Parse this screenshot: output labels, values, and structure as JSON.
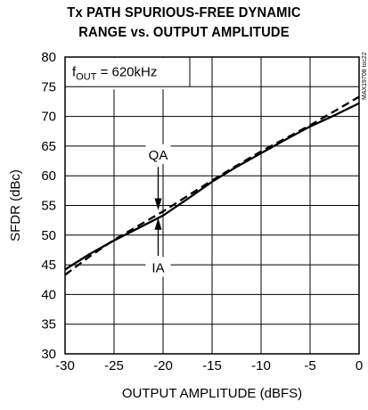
{
  "chart_data": {
    "type": "line",
    "title_lines": [
      "Tx PATH SPURIOUS-FREE DYNAMIC",
      "RANGE vs. OUTPUT AMPLITUDE"
    ],
    "xlabel": "OUTPUT AMPLITUDE (dBFS)",
    "ylabel": "SFDR (dBc)",
    "xlim": [
      -30,
      0
    ],
    "ylim": [
      30,
      80
    ],
    "xticks": [
      -30,
      -25,
      -20,
      -15,
      -10,
      -5,
      0
    ],
    "yticks": [
      30,
      35,
      40,
      45,
      50,
      55,
      60,
      65,
      70,
      75,
      80
    ],
    "grid": true,
    "annotation_box": {
      "prefix": "f",
      "subscript": "OUT",
      "value": " = 620kHz"
    },
    "watermark": "MAX19708 toc22",
    "series": [
      {
        "name": "QA",
        "style": "dashed",
        "x": [
          -30,
          -27.5,
          -25,
          -22.5,
          -20,
          -17.5,
          -15,
          -12.5,
          -10,
          -7.5,
          -5,
          -2.5,
          0
        ],
        "y": [
          43.3,
          46.4,
          49.2,
          51.6,
          54.0,
          56.6,
          59.2,
          61.7,
          64.1,
          66.3,
          68.5,
          70.9,
          73.3
        ]
      },
      {
        "name": "IA",
        "style": "solid",
        "x": [
          -30,
          -27.5,
          -25,
          -22.5,
          -20,
          -17.5,
          -15,
          -12.5,
          -10,
          -7.5,
          -5,
          -2.5,
          0
        ],
        "y": [
          44.2,
          46.8,
          49.1,
          51.2,
          53.3,
          56.1,
          59.0,
          61.5,
          63.8,
          66.1,
          68.3,
          70.2,
          72.2
        ]
      }
    ],
    "callouts": [
      {
        "label": "QA",
        "x": -20.5,
        "label_y": 63.5
      },
      {
        "label": "IA",
        "x": -20.5,
        "label_y": 44.5
      }
    ]
  }
}
